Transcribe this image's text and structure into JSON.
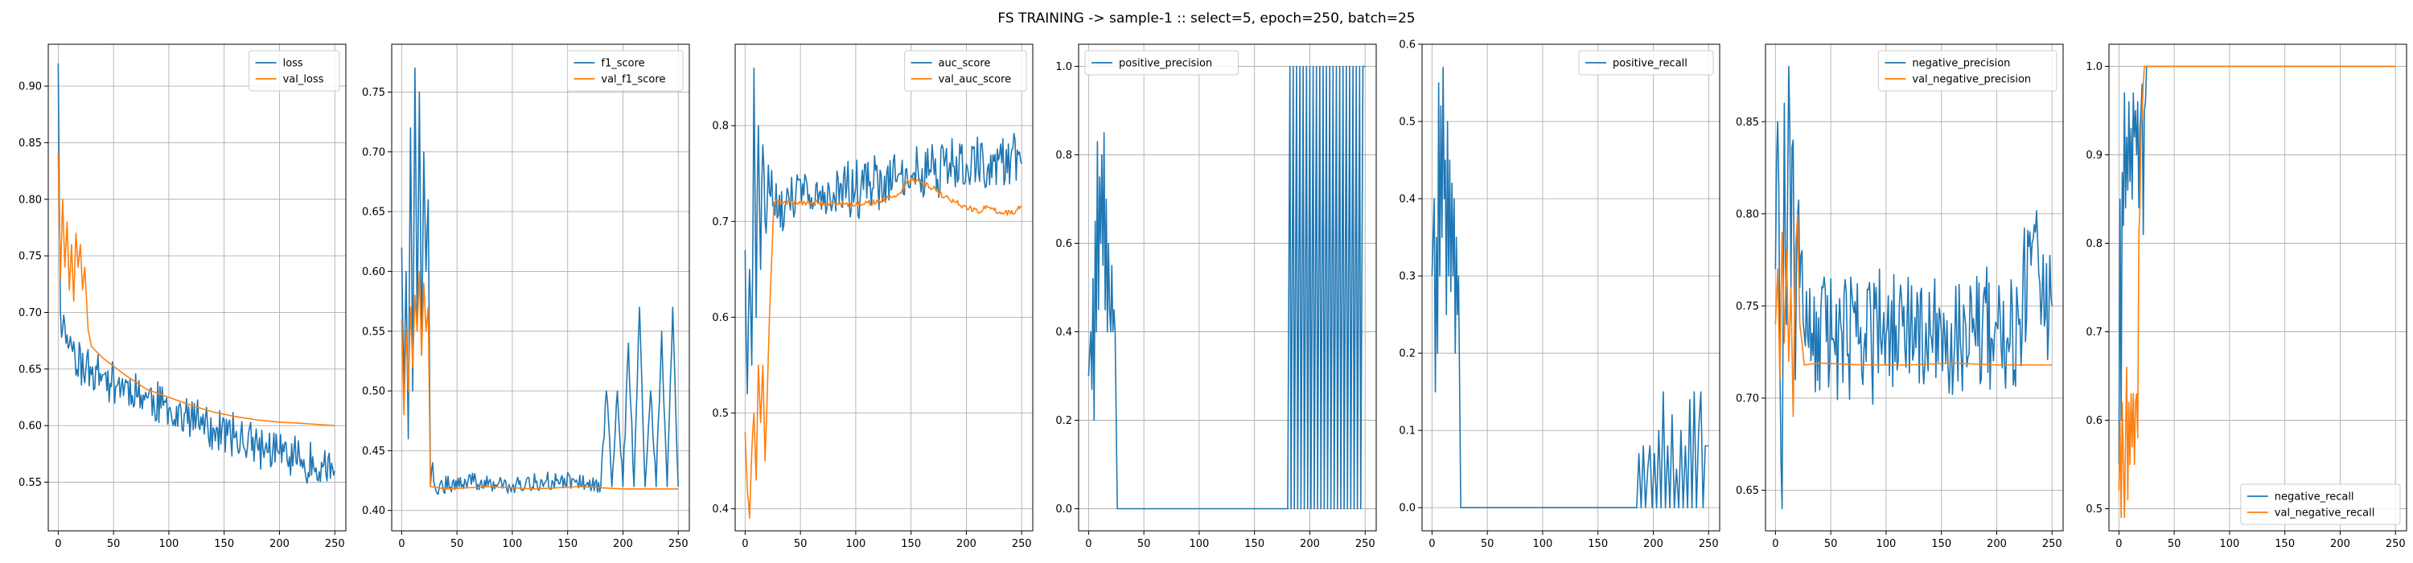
{
  "figure": {
    "title": "FS TRAINING -> sample-1 :: select=5, epoch=250, batch=25"
  },
  "colors": {
    "blue": "#1f77b4",
    "orange": "#ff7f0e",
    "grid": "#b0b0b0"
  },
  "chart_data": [
    {
      "type": "line",
      "grid": true,
      "legend": "top-right",
      "xlim": [
        -9,
        260
      ],
      "ylim": [
        0.507,
        0.937
      ],
      "xticks": [
        0,
        50,
        100,
        150,
        200,
        250
      ],
      "yticks": [
        0.55,
        0.6,
        0.65,
        0.7,
        0.75,
        0.8,
        0.85,
        0.9
      ],
      "yfmt": 2,
      "series": [
        {
          "name": "loss",
          "color": "#1f77b4",
          "noise": 0.014,
          "jitter": 0.6,
          "seed": 11,
          "x": [
            0,
            2,
            4,
            8,
            15,
            25,
            40,
            60,
            80,
            100,
            120,
            140,
            160,
            180,
            200,
            220,
            240,
            250
          ],
          "y": [
            0.92,
            0.7,
            0.685,
            0.68,
            0.665,
            0.65,
            0.645,
            0.635,
            0.625,
            0.615,
            0.605,
            0.598,
            0.59,
            0.582,
            0.575,
            0.57,
            0.565,
            0.56
          ]
        },
        {
          "name": "val_loss",
          "color": "#ff7f0e",
          "noise": 0.0,
          "seed": 12,
          "x": [
            0,
            2,
            4,
            6,
            8,
            10,
            12,
            14,
            16,
            18,
            20,
            22,
            24,
            27,
            30,
            40,
            60,
            80,
            100,
            120,
            140,
            160,
            180,
            200,
            220,
            250
          ],
          "y": [
            0.84,
            0.73,
            0.8,
            0.74,
            0.78,
            0.72,
            0.76,
            0.71,
            0.77,
            0.74,
            0.76,
            0.72,
            0.74,
            0.685,
            0.67,
            0.66,
            0.645,
            0.632,
            0.625,
            0.618,
            0.612,
            0.608,
            0.605,
            0.603,
            0.602,
            0.6
          ]
        }
      ]
    },
    {
      "type": "line",
      "grid": true,
      "legend": "top-right",
      "xlim": [
        -9,
        260
      ],
      "ylim": [
        0.383,
        0.79
      ],
      "xticks": [
        0,
        50,
        100,
        150,
        200,
        250
      ],
      "yticks": [
        0.4,
        0.45,
        0.5,
        0.55,
        0.6,
        0.65,
        0.7,
        0.75
      ],
      "yfmt": 2,
      "series": [
        {
          "name": "f1_score",
          "color": "#1f77b4",
          "noise": 0.006,
          "jitter": 0.5,
          "seed": 21,
          "x": [
            0,
            2,
            4,
            6,
            8,
            10,
            12,
            14,
            16,
            18,
            20,
            22,
            24,
            26,
            28,
            30,
            60,
            100,
            140,
            180,
            185,
            190,
            195,
            200,
            205,
            210,
            215,
            220,
            225,
            230,
            235,
            240,
            245,
            250
          ],
          "y": [
            0.62,
            0.5,
            0.6,
            0.46,
            0.72,
            0.5,
            0.77,
            0.55,
            0.75,
            0.53,
            0.7,
            0.6,
            0.66,
            0.42,
            0.44,
            0.42,
            0.425,
            0.42,
            0.425,
            0.42,
            0.5,
            0.42,
            0.5,
            0.42,
            0.54,
            0.42,
            0.57,
            0.42,
            0.5,
            0.42,
            0.55,
            0.42,
            0.57,
            0.42
          ]
        },
        {
          "name": "val_f1_score",
          "color": "#ff7f0e",
          "noise": 0.0,
          "seed": 22,
          "x": [
            0,
            2,
            4,
            6,
            8,
            10,
            12,
            14,
            16,
            18,
            20,
            22,
            24,
            26,
            40,
            80,
            120,
            160,
            200,
            250
          ],
          "y": [
            0.56,
            0.48,
            0.55,
            0.5,
            0.57,
            0.52,
            0.58,
            0.55,
            0.6,
            0.53,
            0.59,
            0.55,
            0.57,
            0.42,
            0.418,
            0.42,
            0.418,
            0.42,
            0.418,
            0.418
          ]
        }
      ]
    },
    {
      "type": "line",
      "grid": true,
      "legend": "top-right",
      "xlim": [
        -9,
        260
      ],
      "ylim": [
        0.377,
        0.885
      ],
      "xticks": [
        0,
        50,
        100,
        150,
        200,
        250
      ],
      "yticks": [
        0.4,
        0.5,
        0.6,
        0.7,
        0.8
      ],
      "yfmt": 1,
      "series": [
        {
          "name": "auc_score",
          "color": "#1f77b4",
          "noise": 0.022,
          "jitter": 0.6,
          "seed": 31,
          "x": [
            0,
            2,
            4,
            6,
            8,
            10,
            12,
            14,
            16,
            18,
            20,
            22,
            26,
            40,
            60,
            80,
            100,
            120,
            140,
            160,
            180,
            200,
            220,
            240,
            250
          ],
          "y": [
            0.67,
            0.52,
            0.65,
            0.55,
            0.86,
            0.6,
            0.8,
            0.65,
            0.78,
            0.7,
            0.72,
            0.73,
            0.72,
            0.72,
            0.725,
            0.73,
            0.735,
            0.74,
            0.75,
            0.755,
            0.758,
            0.76,
            0.76,
            0.765,
            0.76
          ]
        },
        {
          "name": "val_auc_score",
          "color": "#ff7f0e",
          "noise": 0.003,
          "seed": 32,
          "x": [
            0,
            2,
            4,
            6,
            8,
            10,
            12,
            14,
            16,
            18,
            20,
            22,
            24,
            26,
            30,
            60,
            90,
            120,
            140,
            150,
            160,
            170,
            180,
            190,
            200,
            210,
            220,
            230,
            240,
            250
          ],
          "y": [
            0.48,
            0.42,
            0.39,
            0.46,
            0.5,
            0.43,
            0.55,
            0.49,
            0.55,
            0.45,
            0.52,
            0.6,
            0.66,
            0.72,
            0.72,
            0.72,
            0.718,
            0.72,
            0.73,
            0.745,
            0.74,
            0.735,
            0.725,
            0.72,
            0.715,
            0.71,
            0.715,
            0.71,
            0.708,
            0.715
          ]
        }
      ]
    },
    {
      "type": "line",
      "grid": true,
      "legend": "top-left",
      "xlim": [
        -9,
        260
      ],
      "ylim": [
        -0.05,
        1.05
      ],
      "xticks": [
        0,
        50,
        100,
        150,
        200,
        250
      ],
      "yticks": [
        0.0,
        0.2,
        0.4,
        0.6,
        0.8,
        1.0
      ],
      "yfmt": 1,
      "series": [
        {
          "name": "positive_precision",
          "color": "#1f77b4",
          "noise": 0.0,
          "seed": 41,
          "x": [
            0,
            2,
            3,
            4,
            5,
            6,
            7,
            8,
            9,
            10,
            11,
            12,
            13,
            14,
            15,
            16,
            17,
            18,
            19,
            20,
            21,
            22,
            23,
            24,
            26,
            28,
            60,
            100,
            140,
            180,
            182,
            183,
            185,
            186,
            188,
            189,
            191,
            192,
            194,
            195,
            197,
            198,
            200,
            201,
            203,
            204,
            206,
            207,
            209,
            210,
            212,
            213,
            215,
            216,
            218,
            219,
            221,
            222,
            224,
            225,
            227,
            228,
            230,
            231,
            233,
            234,
            236,
            237,
            239,
            240,
            242,
            243,
            245,
            246,
            248,
            250
          ],
          "y": [
            0.3,
            0.4,
            0.27,
            0.52,
            0.2,
            0.65,
            0.4,
            0.83,
            0.45,
            0.75,
            0.6,
            0.8,
            0.55,
            0.85,
            0.45,
            0.7,
            0.4,
            0.6,
            0.45,
            0.4,
            0.55,
            0.4,
            0.45,
            0.4,
            0.0,
            0.0,
            0.0,
            0.0,
            0.0,
            0.0,
            1.0,
            0.0,
            1.0,
            0.0,
            1.0,
            0.0,
            1.0,
            0.0,
            1.0,
            0.0,
            1.0,
            0.0,
            1.0,
            0.0,
            1.0,
            0.0,
            1.0,
            0.0,
            1.0,
            0.0,
            1.0,
            0.0,
            1.0,
            0.0,
            1.0,
            0.0,
            1.0,
            0.0,
            1.0,
            0.0,
            1.0,
            0.0,
            1.0,
            0.0,
            1.0,
            0.0,
            1.0,
            0.0,
            1.0,
            0.0,
            1.0,
            0.0,
            1.0,
            0.0,
            1.0,
            1.0
          ]
        }
      ]
    },
    {
      "type": "line",
      "grid": true,
      "legend": "top-right",
      "xlim": [
        -9,
        260
      ],
      "ylim": [
        -0.03,
        0.6
      ],
      "xticks": [
        0,
        50,
        100,
        150,
        200,
        250
      ],
      "yticks": [
        0.0,
        0.1,
        0.2,
        0.3,
        0.4,
        0.5,
        0.6
      ],
      "yfmt": 1,
      "series": [
        {
          "name": "positive_recall",
          "color": "#1f77b4",
          "noise": 0.0,
          "seed": 51,
          "x": [
            0,
            2,
            3,
            4,
            5,
            6,
            7,
            8,
            9,
            10,
            11,
            12,
            13,
            14,
            15,
            16,
            17,
            18,
            19,
            20,
            21,
            22,
            23,
            24,
            26,
            28,
            60,
            100,
            140,
            185,
            187,
            189,
            191,
            193,
            195,
            197,
            199,
            201,
            203,
            205,
            207,
            209,
            211,
            213,
            215,
            217,
            219,
            221,
            223,
            225,
            227,
            229,
            231,
            233,
            235,
            237,
            239,
            241,
            243,
            245,
            247,
            250
          ],
          "y": [
            0.3,
            0.4,
            0.15,
            0.35,
            0.2,
            0.55,
            0.3,
            0.52,
            0.35,
            0.57,
            0.4,
            0.45,
            0.25,
            0.5,
            0.3,
            0.45,
            0.28,
            0.42,
            0.3,
            0.4,
            0.2,
            0.35,
            0.25,
            0.3,
            0.0,
            0.0,
            0.0,
            0.0,
            0.0,
            0.0,
            0.07,
            0.0,
            0.08,
            0.0,
            0.05,
            0.08,
            0.0,
            0.07,
            0.0,
            0.1,
            0.0,
            0.15,
            0.0,
            0.08,
            0.0,
            0.12,
            0.0,
            0.05,
            0.0,
            0.1,
            0.0,
            0.08,
            0.0,
            0.14,
            0.0,
            0.15,
            0.0,
            0.1,
            0.15,
            0.0,
            0.08,
            0.08
          ]
        }
      ]
    },
    {
      "type": "line",
      "grid": true,
      "legend": "top-right",
      "xlim": [
        -9,
        260
      ],
      "ylim": [
        0.628,
        0.892
      ],
      "xticks": [
        0,
        50,
        100,
        150,
        200,
        250
      ],
      "yticks": [
        0.65,
        0.7,
        0.75,
        0.8,
        0.85
      ],
      "yfmt": 2,
      "series": [
        {
          "name": "negative_precision",
          "color": "#1f77b4",
          "noise": 0.026,
          "jitter": 0.6,
          "seed": 61,
          "x": [
            0,
            2,
            4,
            6,
            8,
            10,
            12,
            14,
            16,
            18,
            20,
            22,
            24,
            26,
            60,
            100,
            140,
            180,
            200,
            220,
            235,
            240,
            250
          ],
          "y": [
            0.77,
            0.85,
            0.72,
            0.64,
            0.86,
            0.74,
            0.88,
            0.76,
            0.84,
            0.71,
            0.8,
            0.76,
            0.78,
            0.735,
            0.735,
            0.735,
            0.735,
            0.735,
            0.74,
            0.74,
            0.79,
            0.74,
            0.75
          ]
        },
        {
          "name": "val_negative_precision",
          "color": "#ff7f0e",
          "noise": 0.0,
          "seed": 62,
          "x": [
            0,
            2,
            4,
            6,
            8,
            10,
            12,
            14,
            16,
            18,
            20,
            22,
            24,
            26,
            40,
            80,
            120,
            160,
            200,
            250
          ],
          "y": [
            0.74,
            0.77,
            0.71,
            0.79,
            0.73,
            0.78,
            0.72,
            0.76,
            0.69,
            0.78,
            0.8,
            0.74,
            0.73,
            0.718,
            0.719,
            0.718,
            0.718,
            0.719,
            0.718,
            0.718
          ]
        }
      ]
    },
    {
      "type": "line",
      "grid": true,
      "legend": "bottom-right",
      "xlim": [
        -9,
        260
      ],
      "ylim": [
        0.475,
        1.025
      ],
      "xticks": [
        0,
        50,
        100,
        150,
        200,
        250
      ],
      "yticks": [
        0.5,
        0.6,
        0.7,
        0.8,
        0.9,
        1.0
      ],
      "yfmt": 1,
      "series": [
        {
          "name": "negative_recall",
          "color": "#1f77b4",
          "noise": 0.0,
          "seed": 71,
          "x": [
            0,
            1,
            2,
            3,
            4,
            5,
            6,
            7,
            8,
            9,
            10,
            11,
            12,
            13,
            14,
            15,
            16,
            17,
            18,
            19,
            20,
            21,
            22,
            23,
            24,
            25,
            26,
            28,
            60,
            120,
            180,
            250
          ],
          "y": [
            0.55,
            0.85,
            0.6,
            0.88,
            0.82,
            0.97,
            0.84,
            0.92,
            0.86,
            0.96,
            0.87,
            0.93,
            0.85,
            0.97,
            0.92,
            0.95,
            0.9,
            0.96,
            0.84,
            0.93,
            0.95,
            0.98,
            0.81,
            0.95,
            0.96,
            1.0,
            1.0,
            1.0,
            1.0,
            1.0,
            1.0,
            1.0
          ]
        },
        {
          "name": "val_negative_recall",
          "color": "#ff7f0e",
          "noise": 0.0,
          "seed": 72,
          "x": [
            0,
            1,
            2,
            3,
            4,
            5,
            6,
            7,
            8,
            9,
            10,
            11,
            12,
            13,
            14,
            15,
            16,
            17,
            18,
            19,
            20,
            21,
            22,
            23,
            24,
            25,
            26,
            28,
            60,
            120,
            180,
            250
          ],
          "y": [
            0.52,
            0.6,
            0.49,
            0.62,
            0.55,
            0.49,
            0.58,
            0.66,
            0.51,
            0.62,
            0.55,
            0.63,
            0.57,
            0.63,
            0.55,
            0.62,
            0.63,
            0.58,
            0.81,
            0.84,
            0.93,
            0.95,
            0.98,
            1.0,
            1.0,
            1.0,
            1.0,
            1.0,
            1.0,
            1.0,
            1.0,
            1.0
          ]
        }
      ]
    }
  ]
}
